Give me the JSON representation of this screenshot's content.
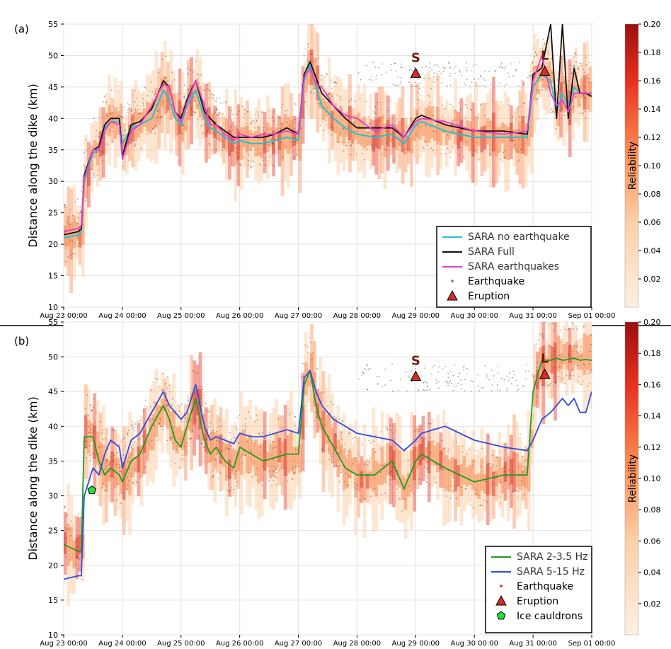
{
  "chart_data": [
    {
      "panel_label": "(a)",
      "type": "line",
      "ylabel": "Distance along the dike (km)",
      "ylim": [
        10,
        55
      ],
      "yticks": [
        10,
        15,
        20,
        25,
        30,
        35,
        40,
        45,
        50,
        55
      ],
      "xlim": [
        "2014-08-23 00:00",
        "2014-09-01 00:00"
      ],
      "xtick_labels": [
        "Aug 23 00:00",
        "Aug 24 00:00",
        "Aug 25 00:00",
        "Aug 26 00:00",
        "Aug 27 00:00",
        "Aug 28 00:00",
        "Aug 29 00:00",
        "Aug 30 00:00",
        "Aug 31 00:00",
        "Sep 01 00:00"
      ],
      "grid": true,
      "legend_placement": "lower-right",
      "colorbar": {
        "label": "Reliability",
        "range": [
          0.0,
          0.2
        ],
        "tick_labels": [
          "0.20",
          "0.18",
          "0.16",
          "0.14",
          "0.12",
          "0.10",
          "0.08",
          "0.06",
          "0.04",
          "0.02"
        ],
        "colors": [
          "#fdf0e2",
          "#fdd0a8",
          "#fb8c50",
          "#e7301e",
          "#9a0f0f"
        ]
      },
      "series": [
        {
          "name": "SARA no earthquake",
          "color": "#22c3cf",
          "x": [
            0.0,
            0.25,
            0.3,
            0.35,
            0.5,
            0.6,
            0.7,
            0.8,
            0.95,
            1.0,
            1.15,
            1.3,
            1.5,
            1.7,
            1.8,
            1.9,
            2.0,
            2.1,
            2.25,
            2.4,
            2.5,
            2.6,
            2.75,
            2.9,
            3.0,
            3.2,
            3.4,
            3.6,
            3.8,
            4.0,
            4.1,
            4.2,
            4.3,
            4.4,
            4.6,
            4.8,
            5.0,
            5.3,
            5.6,
            5.8,
            6.0,
            6.1,
            6.5,
            7.0,
            7.5,
            7.9,
            8.0,
            8.15,
            8.3,
            8.4,
            8.5,
            8.6,
            8.7,
            8.8,
            8.9,
            9.0
          ],
          "y": [
            21,
            21.5,
            22,
            30,
            34.5,
            35,
            38.5,
            39.5,
            39.5,
            36,
            38.5,
            39,
            40,
            44.5,
            43,
            40,
            39,
            42,
            44.5,
            40,
            38.5,
            38,
            37,
            36,
            36.5,
            36,
            36,
            36.5,
            37,
            36.5,
            46,
            48.5,
            45,
            42,
            40,
            38.5,
            37.5,
            37,
            37.5,
            36,
            39,
            39.5,
            38,
            37,
            37,
            37,
            45,
            47,
            46,
            41,
            44,
            42,
            45,
            44,
            44,
            44
          ]
        },
        {
          "name": "SARA Full",
          "color": "#111111",
          "x": [
            0.0,
            0.25,
            0.3,
            0.35,
            0.5,
            0.6,
            0.7,
            0.8,
            0.95,
            1.0,
            1.15,
            1.3,
            1.5,
            1.7,
            1.8,
            1.9,
            2.0,
            2.1,
            2.25,
            2.4,
            2.5,
            2.6,
            2.75,
            2.9,
            3.0,
            3.2,
            3.4,
            3.6,
            3.8,
            4.0,
            4.1,
            4.2,
            4.3,
            4.4,
            4.6,
            4.8,
            5.0,
            5.3,
            5.6,
            5.8,
            6.0,
            6.1,
            6.5,
            7.0,
            7.5,
            7.9,
            8.0,
            8.15,
            8.3,
            8.4,
            8.5,
            8.6,
            8.7,
            8.8,
            8.9,
            9.0
          ],
          "y": [
            21.5,
            22,
            22.5,
            31,
            35,
            35.5,
            39,
            40,
            40,
            34,
            39,
            39.5,
            41.5,
            46,
            45,
            41,
            40,
            43,
            46,
            41,
            40,
            39,
            38,
            37,
            37,
            37,
            37,
            37.5,
            38.5,
            37.5,
            47,
            49,
            46.5,
            44,
            42,
            40,
            38.5,
            38.5,
            38.5,
            37,
            40,
            40.5,
            39,
            38,
            38,
            37.5,
            47,
            48,
            55,
            40,
            55,
            40,
            48,
            44,
            44,
            43.5
          ]
        },
        {
          "name": "SARA earthquakes",
          "color": "#e43bd6",
          "x": [
            0.0,
            0.25,
            0.3,
            0.35,
            0.5,
            0.6,
            0.7,
            0.8,
            0.95,
            1.0,
            1.15,
            1.3,
            1.5,
            1.7,
            1.8,
            1.9,
            2.0,
            2.1,
            2.25,
            2.4,
            2.5,
            2.6,
            2.75,
            2.9,
            3.0,
            3.2,
            3.4,
            3.6,
            3.8,
            4.0,
            4.1,
            4.2,
            4.3,
            4.4,
            4.6,
            4.8,
            5.0,
            5.3,
            5.6,
            5.8,
            6.0,
            6.1,
            6.5,
            7.0,
            7.5,
            7.9,
            8.0,
            8.15,
            8.3,
            8.4,
            8.5,
            8.6,
            8.7,
            8.8,
            8.9,
            9.0
          ],
          "y": [
            22,
            22.5,
            23,
            30.5,
            35,
            35,
            38,
            39.5,
            39,
            33.5,
            38,
            39,
            42,
            45.5,
            45,
            41,
            39.5,
            42.5,
            46,
            42,
            39,
            39,
            37.5,
            36.5,
            37.5,
            37,
            37.5,
            37.5,
            38,
            37.5,
            46.5,
            48,
            45.5,
            45,
            42,
            40.5,
            40,
            38,
            39,
            37,
            39.5,
            40,
            39.5,
            38,
            37.5,
            38,
            46,
            50,
            44,
            42,
            43,
            41,
            44,
            44,
            44,
            44
          ]
        }
      ],
      "point_layers": [
        {
          "name": "Earthquake",
          "color": "#8a8a8a"
        },
        {
          "name": "Eruption",
          "color": "#d62c24",
          "points": [
            {
              "x": 6.0,
              "y": 47.2,
              "label": "S"
            },
            {
              "x": 8.2,
              "y": 47.5,
              "label": "L"
            }
          ]
        }
      ]
    },
    {
      "panel_label": "(b)",
      "type": "line",
      "ylabel": "Distance along the dike (km)",
      "ylim": [
        10,
        55
      ],
      "yticks": [
        10,
        15,
        20,
        25,
        30,
        35,
        40,
        45,
        50,
        55
      ],
      "xlim": [
        "2014-08-23 00:00",
        "2014-09-01 00:00"
      ],
      "xtick_labels": [
        "Aug 23 00:00",
        "Aug 24 00:00",
        "Aug 25 00:00",
        "Aug 26 00:00",
        "Aug 27 00:00",
        "Aug 28 00:00",
        "Aug 29 00:00",
        "Aug 30 00:00",
        "Aug 31 00:00",
        "Sep 01 00:00"
      ],
      "grid": true,
      "legend_placement": "lower-right",
      "colorbar": {
        "label": "Reliability",
        "range": [
          0.0,
          0.2
        ],
        "tick_labels": [
          "0.20",
          "0.18",
          "0.16",
          "0.14",
          "0.12",
          "0.10",
          "0.08",
          "0.06",
          "0.04",
          "0.02"
        ],
        "colors": [
          "#fdf0e2",
          "#fdd0a8",
          "#fb8c50",
          "#e7301e",
          "#9a0f0f"
        ]
      },
      "series": [
        {
          "name": "SARA 2-3.5 Hz",
          "color": "#1a9e1a",
          "x": [
            0.0,
            0.25,
            0.3,
            0.35,
            0.5,
            0.6,
            0.7,
            0.8,
            0.95,
            1.0,
            1.15,
            1.3,
            1.5,
            1.7,
            1.8,
            1.9,
            2.0,
            2.1,
            2.25,
            2.4,
            2.5,
            2.6,
            2.75,
            2.9,
            3.0,
            3.2,
            3.4,
            3.6,
            3.8,
            4.0,
            4.1,
            4.2,
            4.3,
            4.4,
            4.6,
            4.8,
            5.0,
            5.3,
            5.6,
            5.8,
            6.0,
            6.1,
            6.5,
            7.0,
            7.5,
            7.9,
            8.0,
            8.15,
            8.3,
            8.4,
            8.5,
            8.6,
            8.7,
            8.8,
            8.9,
            9.0
          ],
          "y": [
            23,
            22,
            22,
            38.5,
            38.5,
            35,
            33,
            34,
            33,
            32,
            35,
            36,
            40,
            43,
            41,
            38,
            37,
            40,
            44,
            38,
            36,
            37,
            35,
            34,
            37,
            36,
            35,
            35.5,
            36,
            36,
            46,
            48,
            43,
            40,
            37,
            34,
            33,
            33,
            35,
            31,
            35,
            36,
            34,
            32,
            33,
            33,
            45,
            49.5,
            49.5,
            49.8,
            49.5,
            49.6,
            49.8,
            49.5,
            49.6,
            49.5
          ]
        },
        {
          "name": "SARA 5-15 Hz",
          "color": "#2d4de0",
          "x": [
            0.0,
            0.25,
            0.3,
            0.35,
            0.5,
            0.6,
            0.7,
            0.8,
            0.95,
            1.0,
            1.15,
            1.3,
            1.5,
            1.7,
            1.8,
            1.9,
            2.0,
            2.1,
            2.25,
            2.4,
            2.5,
            2.6,
            2.75,
            2.9,
            3.0,
            3.2,
            3.4,
            3.6,
            3.8,
            4.0,
            4.1,
            4.2,
            4.3,
            4.4,
            4.6,
            4.8,
            5.0,
            5.3,
            5.6,
            5.8,
            6.0,
            6.1,
            6.5,
            7.0,
            7.5,
            7.9,
            8.0,
            8.15,
            8.3,
            8.4,
            8.5,
            8.6,
            8.7,
            8.8,
            8.9,
            9.0
          ],
          "y": [
            18,
            18.5,
            18.5,
            30,
            34,
            33,
            36,
            38,
            37,
            34,
            38,
            39,
            42,
            45,
            43,
            42,
            41,
            42,
            46,
            40,
            38,
            38.5,
            38,
            37.5,
            39,
            38.5,
            38.5,
            39,
            39.5,
            39,
            47,
            48,
            45,
            43,
            41,
            40,
            39,
            38.5,
            38,
            36.5,
            38,
            39,
            40,
            38,
            37,
            36.5,
            38,
            41,
            42,
            43,
            44,
            43,
            44,
            42,
            42,
            45
          ]
        }
      ],
      "point_layers": [
        {
          "name": "Earthquake",
          "color": "#e8441e"
        },
        {
          "name": "Eruption",
          "color": "#d62c24",
          "points": [
            {
              "x": 6.0,
              "y": 47.2,
              "label": "S"
            },
            {
              "x": 8.2,
              "y": 47.5,
              "label": "L"
            }
          ]
        },
        {
          "name": "Ice cauldrons",
          "color": "#22e03a",
          "points": [
            {
              "x": 0.48,
              "y": 30.8
            }
          ]
        }
      ]
    }
  ]
}
